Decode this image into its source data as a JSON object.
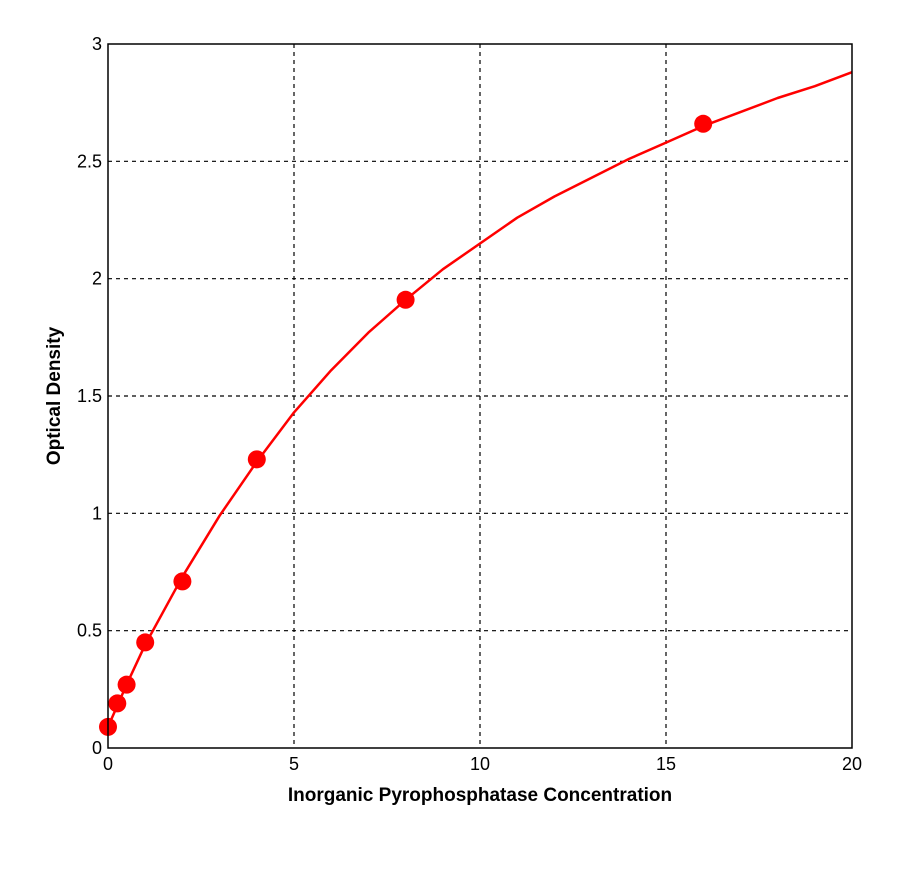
{
  "chart_data": {
    "type": "scatter",
    "title": "",
    "xlabel": "Inorganic Pyrophosphatase Concentration",
    "ylabel": "Optical Density",
    "xlim": [
      0,
      20
    ],
    "ylim": [
      0,
      3
    ],
    "x_ticks": [
      0,
      5,
      10,
      15,
      20
    ],
    "x_tick_labels": [
      "0",
      "5",
      "10",
      "15",
      "20"
    ],
    "y_ticks": [
      0,
      0.5,
      1,
      1.5,
      2,
      2.5,
      3
    ],
    "y_tick_labels": [
      "0",
      "0.5",
      "1",
      "1.5",
      "2",
      "2.5",
      "3"
    ],
    "grid": true,
    "grid_style": "dashed",
    "series": [
      {
        "points": [
          {
            "x": 0,
            "y": 0.09
          },
          {
            "x": 0.25,
            "y": 0.19
          },
          {
            "x": 0.5,
            "y": 0.27
          },
          {
            "x": 1,
            "y": 0.45
          },
          {
            "x": 2,
            "y": 0.71
          },
          {
            "x": 4,
            "y": 1.23
          },
          {
            "x": 8,
            "y": 1.91
          },
          {
            "x": 16,
            "y": 2.66
          }
        ],
        "fit_curve": {
          "x": [
            0,
            0.5,
            1,
            2,
            3,
            4,
            5,
            6,
            7,
            8,
            9,
            10,
            11,
            12,
            13,
            14,
            15,
            16,
            17,
            18,
            19,
            20
          ],
          "y": [
            0.09,
            0.27,
            0.44,
            0.73,
            0.99,
            1.22,
            1.43,
            1.61,
            1.77,
            1.91,
            2.04,
            2.15,
            2.26,
            2.35,
            2.43,
            2.51,
            2.58,
            2.65,
            2.71,
            2.77,
            2.82,
            2.88
          ]
        }
      }
    ]
  },
  "colors": {
    "series": "#ff0000",
    "axis": "#000000",
    "grid": "#000000",
    "background": "#ffffff"
  }
}
